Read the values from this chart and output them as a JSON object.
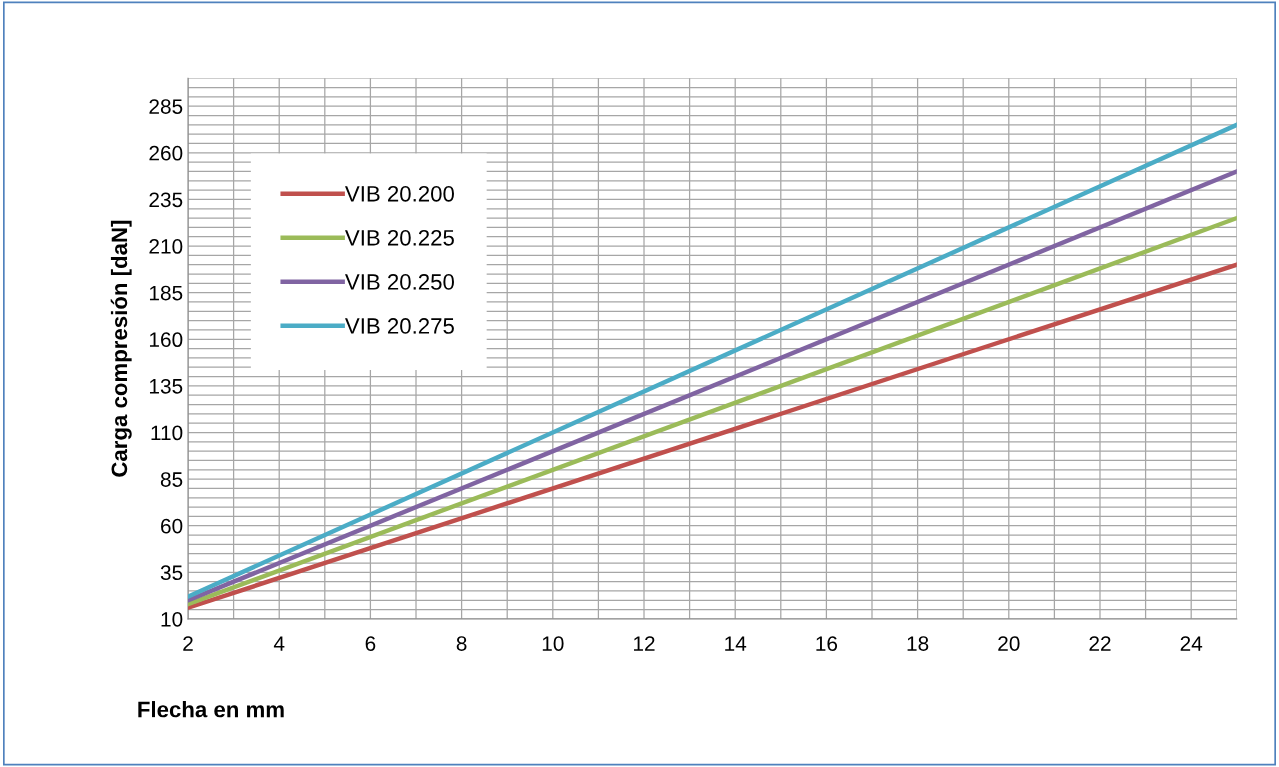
{
  "chart_data": {
    "type": "line",
    "xlabel": "Flecha en mm",
    "ylabel": "Carga compresión [daN]",
    "x": [
      2,
      25
    ],
    "series": [
      {
        "name": "VIB 20.200",
        "color": "#c0504d",
        "values": [
          16,
          200
        ]
      },
      {
        "name": "VIB 20.225",
        "color": "#9bbb59",
        "values": [
          18,
          225
        ]
      },
      {
        "name": "VIB 20.250",
        "color": "#8064a2",
        "values": [
          20,
          250
        ]
      },
      {
        "name": "VIB 20.275",
        "color": "#4bacc6",
        "values": [
          22,
          275
        ]
      }
    ],
    "xlim": [
      2,
      25
    ],
    "xticks": [
      2,
      4,
      6,
      8,
      10,
      12,
      14,
      16,
      18,
      20,
      22,
      24
    ],
    "ylim": [
      10,
      300
    ],
    "yticks": [
      10,
      35,
      60,
      85,
      110,
      135,
      160,
      185,
      210,
      235,
      260,
      285
    ],
    "grid": true,
    "legend": "top left",
    "marker": "none",
    "line_style": "solid"
  }
}
